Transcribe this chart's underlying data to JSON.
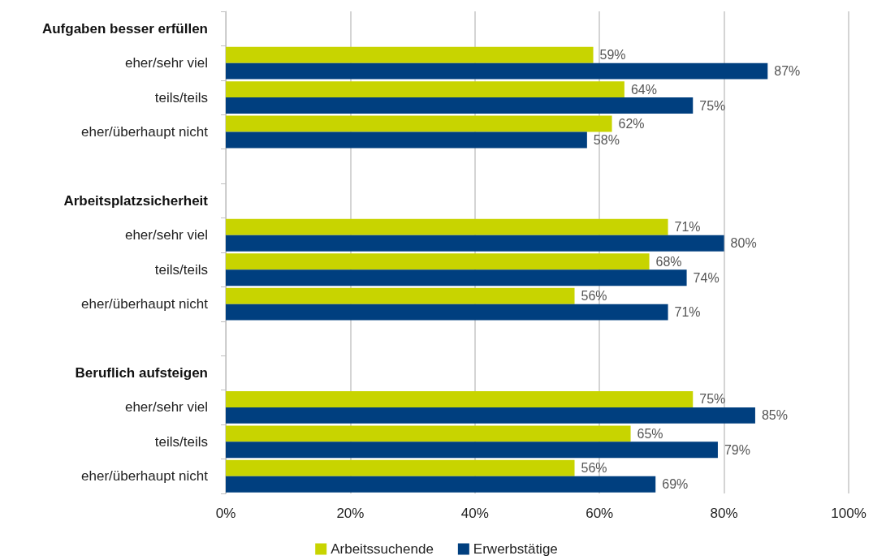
{
  "chart_data": {
    "type": "bar",
    "orientation": "horizontal",
    "categories": [
      "Aufgaben besser erfüllen",
      "eher/sehr viel",
      "teils/teils",
      "eher/überhaupt nicht",
      null,
      "Arbeitsplatzsicherheit",
      "eher/sehr viel",
      "teils/teils",
      "eher/überhaupt nicht",
      null,
      "Beruflich aufsteigen",
      "eher/sehr viel",
      "teils/teils",
      "eher/überhaupt nicht"
    ],
    "series": [
      {
        "name": "Arbeitssuchende",
        "color": "#c8d400",
        "values": [
          null,
          59,
          64,
          62,
          null,
          null,
          71,
          68,
          56,
          null,
          null,
          75,
          65,
          56
        ],
        "value_labels": [
          null,
          "59%",
          "64%",
          "62%",
          null,
          null,
          "71%",
          "68%",
          "56%",
          null,
          null,
          "75%",
          "65%",
          "56%"
        ]
      },
      {
        "name": "Erwerbstätige",
        "color": "#003f7f",
        "values": [
          null,
          87,
          75,
          58,
          null,
          null,
          80,
          74,
          71,
          null,
          null,
          85,
          79,
          69
        ],
        "value_labels": [
          null,
          "87%",
          "75%",
          "58%",
          null,
          null,
          "80%",
          "74%",
          "71%",
          null,
          null,
          "85%",
          "79%",
          "69%"
        ]
      }
    ],
    "xlim": [
      0,
      100
    ],
    "xticks": [
      {
        "value": 0,
        "label": "0%"
      },
      {
        "value": 20,
        "label": "20%"
      },
      {
        "value": 40,
        "label": "40%"
      },
      {
        "value": 60,
        "label": "60%"
      },
      {
        "value": 80,
        "label": "80%"
      },
      {
        "value": 100,
        "label": "100%"
      }
    ],
    "grid": "x",
    "legend": "bottom"
  }
}
